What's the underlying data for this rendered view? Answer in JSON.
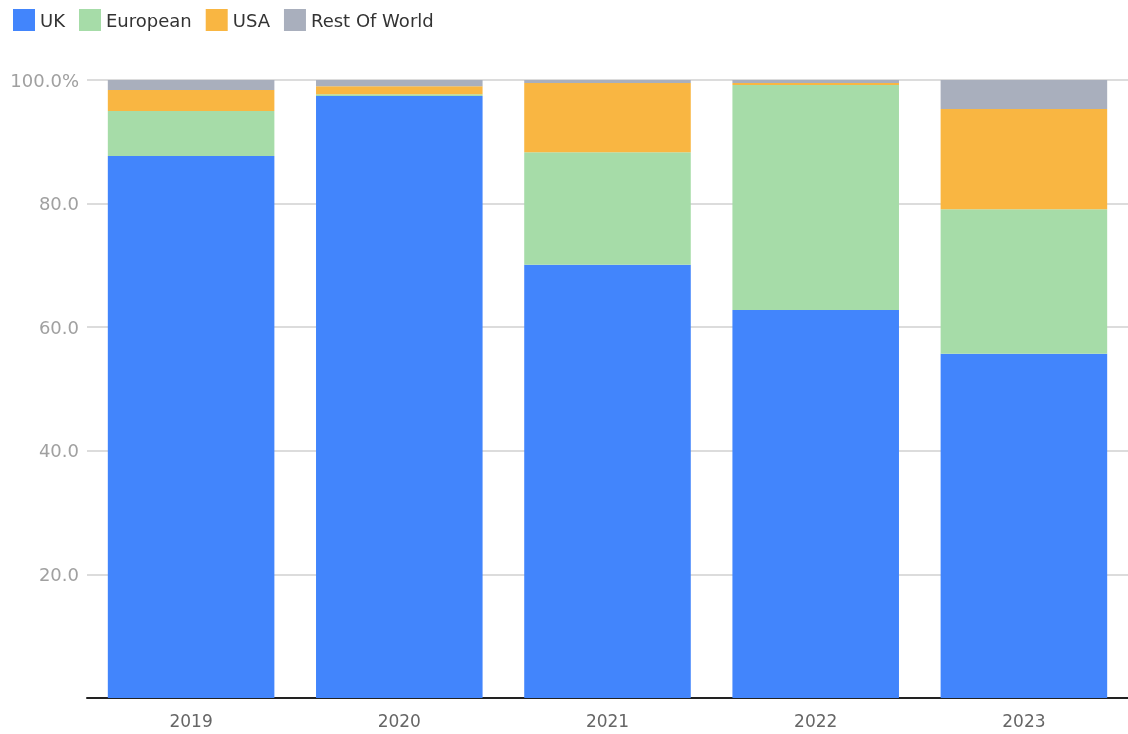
{
  "chart_data": {
    "type": "bar",
    "stacked": true,
    "categories": [
      "2019",
      "2020",
      "2021",
      "2022",
      "2023"
    ],
    "series": [
      {
        "name": "UK",
        "color": "#4285fc",
        "values": [
          87.7,
          97.4,
          70.1,
          62.8,
          55.7
        ]
      },
      {
        "name": "European",
        "color": "#a6dca8",
        "values": [
          7.3,
          0.3,
          18.2,
          36.4,
          23.4
        ]
      },
      {
        "name": "USA",
        "color": "#f9b642",
        "values": [
          3.4,
          1.3,
          11.2,
          0.3,
          16.2
        ]
      },
      {
        "name": "Rest Of World",
        "color": "#a9afbd",
        "values": [
          1.6,
          1.0,
          0.5,
          0.5,
          4.7
        ]
      }
    ],
    "ylim": [
      0,
      100
    ],
    "yticks": [
      {
        "value": 0,
        "label": null
      },
      {
        "value": 20,
        "label": "20.0"
      },
      {
        "value": 40,
        "label": "40.0"
      },
      {
        "value": 60,
        "label": "60.0"
      },
      {
        "value": 80,
        "label": "80.0"
      },
      {
        "value": 100,
        "label": "100.0%"
      }
    ],
    "grid": "y",
    "legend": "top left"
  }
}
